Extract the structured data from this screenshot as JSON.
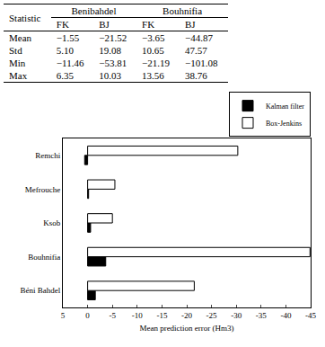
{
  "table": {
    "header": [
      "Statistic",
      "Benibahdel",
      "Bouhnifia"
    ],
    "subheader": [
      "FK",
      "BJ",
      "FK",
      "BJ"
    ],
    "rows": [
      [
        "Mean",
        "−1.55",
        "−21.52",
        "−3.65",
        "−44.87"
      ],
      [
        "Std",
        "5.10",
        "19.08",
        "10.65",
        "47.57"
      ],
      [
        "Min",
        "−11.46",
        "−53.81",
        "−21.19",
        "−101.08"
      ],
      [
        "Max",
        "6.35",
        "10.03",
        "13.56",
        "38.76"
      ]
    ]
  },
  "chart_data": {
    "type": "bar",
    "orientation": "horizontal",
    "categories": [
      "Béni Bahdel",
      "Bouhnifia",
      "Ksob",
      "Mefrouche",
      "Remchi"
    ],
    "series": [
      {
        "name": "Kalman filter",
        "color": "#000000",
        "values": [
          -1.55,
          -3.65,
          -0.6,
          -0.2,
          0.6
        ]
      },
      {
        "name": "Box-Jenkins",
        "color": "#ffffff",
        "values": [
          -21.52,
          -44.87,
          -5,
          -5.5,
          -30.3
        ]
      }
    ],
    "xlabel": "Mean prediction error (Hm3)",
    "xlim": [
      5,
      -45
    ],
    "xticks": [
      5,
      0,
      -5,
      -10,
      -15,
      -20,
      -25,
      -30,
      -35,
      -40,
      -45
    ],
    "legend": "top-right",
    "grid": false
  }
}
